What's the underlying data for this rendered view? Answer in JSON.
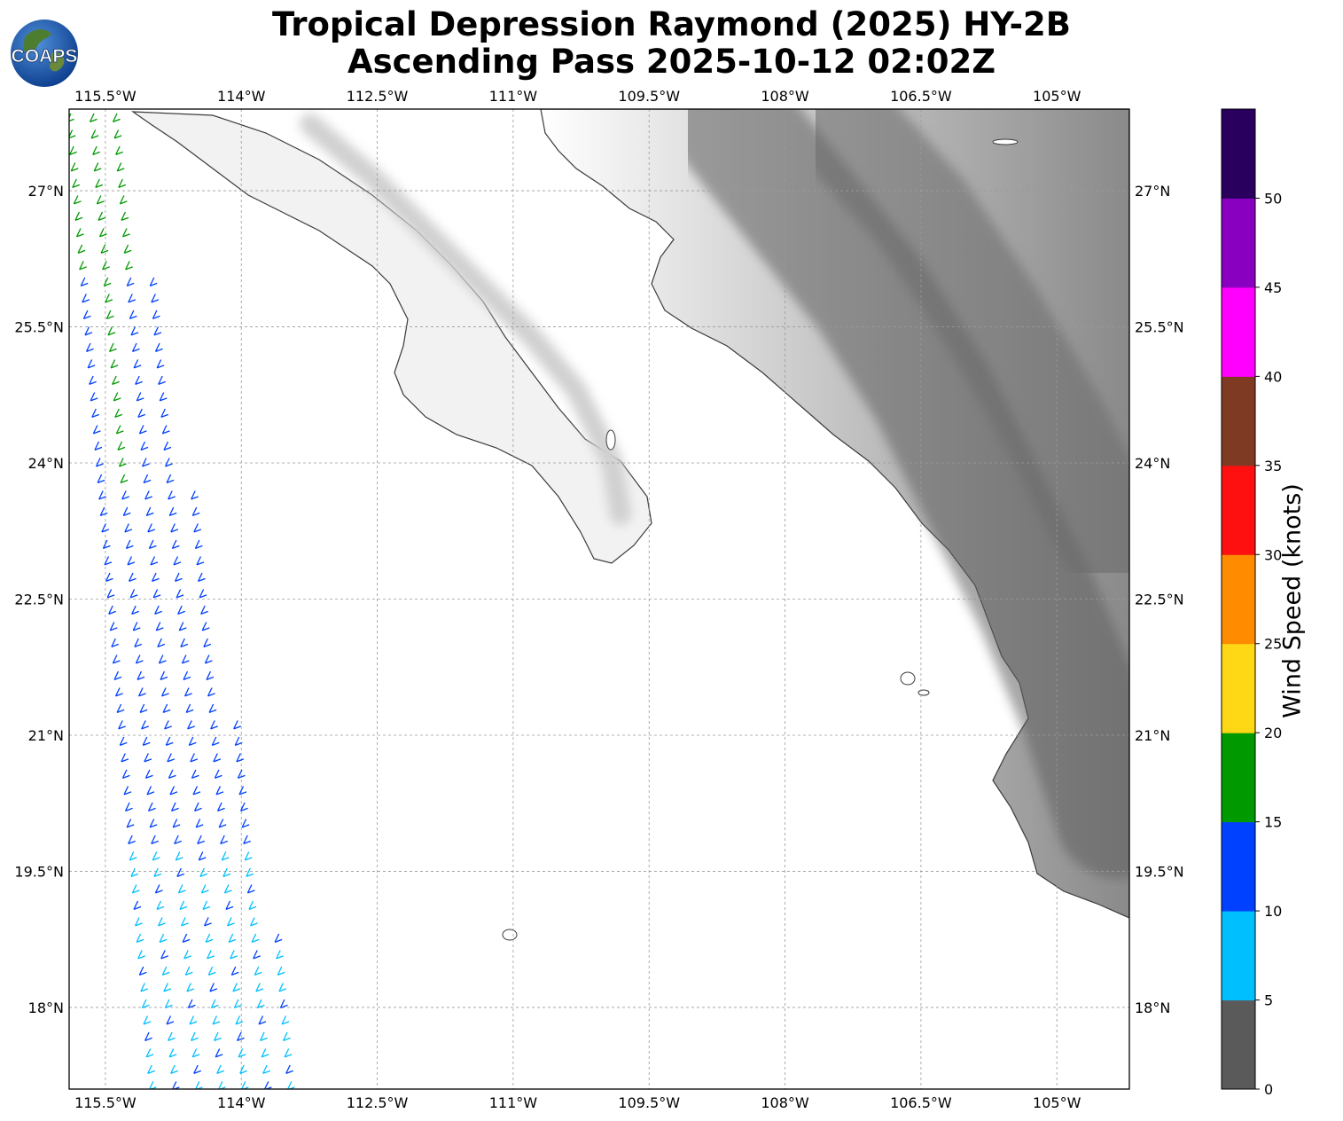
{
  "title": {
    "line1": "Tropical Depression Raymond (2025) HY-2B",
    "line2": "Ascending Pass 2025-10-12 02:02Z"
  },
  "logo": {
    "text": "COAPS",
    "icon": "globe-logo-icon"
  },
  "map": {
    "lon_labels": [
      "115.5°W",
      "114°W",
      "112.5°W",
      "111°W",
      "109.5°W",
      "108°W",
      "106.5°W",
      "105°W"
    ],
    "lat_labels": [
      "27°N",
      "25.5°N",
      "24°N",
      "22.5°N",
      "21°N",
      "19.5°N",
      "18°N"
    ],
    "extent": {
      "lon_min": -115.9,
      "lon_max": -104.2,
      "lat_min": 17.1,
      "lat_max": 27.9
    },
    "gridlines": true,
    "coastline_color": "#333333"
  },
  "colorbar": {
    "title": "Wind Speed (knots)",
    "ticks": [
      "0",
      "5",
      "10",
      "15",
      "20",
      "25",
      "30",
      "35",
      "40",
      "45",
      "50"
    ],
    "bins": [
      {
        "min": 0,
        "max": 5,
        "color": "#5a5a5a"
      },
      {
        "min": 5,
        "max": 10,
        "color": "#00bfff"
      },
      {
        "min": 10,
        "max": 15,
        "color": "#0040ff"
      },
      {
        "min": 15,
        "max": 20,
        "color": "#009900"
      },
      {
        "min": 20,
        "max": 25,
        "color": "#ffd815"
      },
      {
        "min": 25,
        "max": 30,
        "color": "#ff8c00"
      },
      {
        "min": 30,
        "max": 35,
        "color": "#ff1010"
      },
      {
        "min": 35,
        "max": 40,
        "color": "#7f3a24"
      },
      {
        "min": 40,
        "max": 45,
        "color": "#ff00ff"
      },
      {
        "min": 45,
        "max": 50,
        "color": "#8a00c0"
      },
      {
        "min": 50,
        "max": 55,
        "color": "#2a005f"
      }
    ]
  },
  "wind_swath": {
    "description_colors": {
      "light_wind": "#00bfff",
      "moderate_wind": "#0040ff",
      "fresh_wind": "#009900"
    }
  }
}
